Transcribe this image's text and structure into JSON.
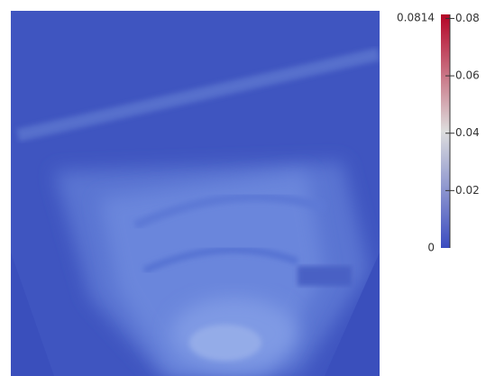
{
  "chart_data": {
    "type": "colormap",
    "colorbar": {
      "lim": [
        0,
        0.0814
      ],
      "ticks": [
        0.02,
        0.04,
        0.06,
        0.08
      ],
      "colors": [
        "#3b4cc0",
        "#dddddd",
        "#b40426"
      ]
    }
  }
}
